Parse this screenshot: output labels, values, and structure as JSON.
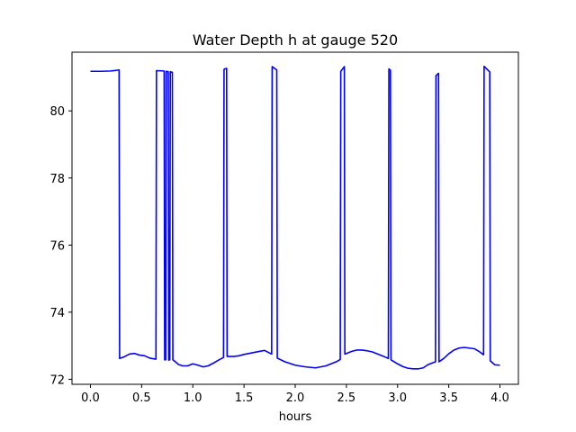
{
  "chart_data": {
    "type": "line",
    "title": "Water Depth h at gauge 520",
    "xlabel": "hours",
    "ylabel": "",
    "xlim": [
      -0.18,
      4.18
    ],
    "ylim": [
      71.85,
      81.75
    ],
    "xticks": [
      0.0,
      0.5,
      1.0,
      1.5,
      2.0,
      2.5,
      3.0,
      3.5,
      4.0
    ],
    "xtick_labels": [
      "0.0",
      "0.5",
      "1.0",
      "1.5",
      "2.0",
      "2.5",
      "3.0",
      "3.5",
      "4.0"
    ],
    "yticks": [
      72,
      74,
      76,
      78,
      80
    ],
    "ytick_labels": [
      "72",
      "74",
      "76",
      "78",
      "80"
    ],
    "grid": false,
    "line_color": "#0000ff",
    "series": [
      {
        "x": [
          0.0,
          0.1,
          0.2,
          0.28,
          0.285,
          0.33,
          0.38,
          0.43,
          0.48,
          0.53,
          0.58,
          0.64,
          0.645,
          0.72,
          0.725,
          0.735,
          0.74,
          0.76,
          0.765,
          0.775,
          0.78,
          0.8,
          0.805,
          0.83,
          0.86,
          0.9,
          0.95,
          1.0,
          1.05,
          1.1,
          1.15,
          1.2,
          1.25,
          1.3,
          1.305,
          1.33,
          1.335,
          1.4,
          1.45,
          1.5,
          1.55,
          1.6,
          1.65,
          1.7,
          1.77,
          1.775,
          1.82,
          1.825,
          1.9,
          2.0,
          2.1,
          2.2,
          2.3,
          2.4,
          2.44,
          2.445,
          2.48,
          2.485,
          2.55,
          2.6,
          2.65,
          2.7,
          2.75,
          2.8,
          2.85,
          2.91,
          2.915,
          2.93,
          2.935,
          3.0,
          3.05,
          3.1,
          3.15,
          3.2,
          3.25,
          3.3,
          3.37,
          3.375,
          3.4,
          3.405,
          3.45,
          3.5,
          3.55,
          3.6,
          3.65,
          3.7,
          3.75,
          3.8,
          3.84,
          3.845,
          3.9,
          3.905,
          3.95,
          4.0
        ],
        "y": [
          81.18,
          81.18,
          81.19,
          81.22,
          72.62,
          72.67,
          72.75,
          72.77,
          72.72,
          72.7,
          72.63,
          72.6,
          81.2,
          81.19,
          72.58,
          72.58,
          81.18,
          81.17,
          72.57,
          72.58,
          81.17,
          81.15,
          72.58,
          72.52,
          72.44,
          72.4,
          72.4,
          72.46,
          72.42,
          72.37,
          72.4,
          72.48,
          72.57,
          72.65,
          81.24,
          81.27,
          72.68,
          72.68,
          72.7,
          72.74,
          72.77,
          72.8,
          72.83,
          72.86,
          72.75,
          81.32,
          81.22,
          72.63,
          72.52,
          72.42,
          72.37,
          72.34,
          72.4,
          72.52,
          72.59,
          81.18,
          81.32,
          72.75,
          72.83,
          72.87,
          72.87,
          72.85,
          72.82,
          72.76,
          72.7,
          72.62,
          81.25,
          81.21,
          72.58,
          72.46,
          72.38,
          72.33,
          72.31,
          72.31,
          72.34,
          72.44,
          72.52,
          81.05,
          81.12,
          72.52,
          72.62,
          72.76,
          72.87,
          72.93,
          72.95,
          72.93,
          72.91,
          72.82,
          72.73,
          81.33,
          81.16,
          72.55,
          72.43,
          72.42
        ]
      }
    ]
  }
}
